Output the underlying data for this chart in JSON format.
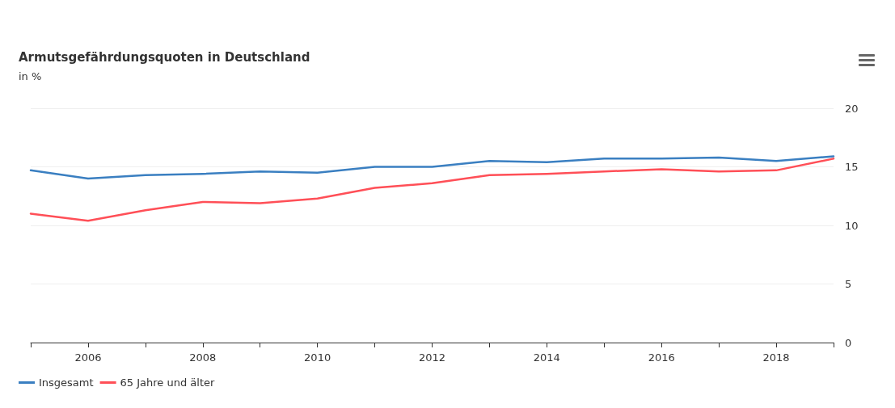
{
  "chart_data": {
    "type": "line",
    "title": "Armutsgefährdungsquoten in Deutschland",
    "subtitle": "in %",
    "x": [
      2005,
      2006,
      2007,
      2008,
      2009,
      2010,
      2011,
      2012,
      2013,
      2014,
      2015,
      2016,
      2017,
      2018,
      2019
    ],
    "series": [
      {
        "name": "Insgesamt",
        "color": "#3a7fc1",
        "values": [
          14.7,
          14.0,
          14.3,
          14.4,
          14.6,
          14.5,
          15.0,
          15.0,
          15.5,
          15.4,
          15.7,
          15.7,
          15.8,
          15.5,
          15.9
        ]
      },
      {
        "name": "65 Jahre und älter",
        "color": "#ff4f57",
        "values": [
          11.0,
          10.4,
          11.3,
          12.0,
          11.9,
          12.3,
          13.2,
          13.6,
          14.3,
          14.4,
          14.6,
          14.8,
          14.6,
          14.7,
          15.7
        ]
      }
    ],
    "xlim": [
      2005,
      2019
    ],
    "xticks": [
      {
        "value": 2005,
        "label": null
      },
      2006,
      {
        "value": 2007,
        "label": null
      },
      2008,
      {
        "value": 2009,
        "label": null
      },
      2010,
      {
        "value": 2011,
        "label": null
      },
      2012,
      {
        "value": 2013,
        "label": null
      },
      2014,
      {
        "value": 2015,
        "label": null
      },
      2016,
      {
        "value": 2017,
        "label": null
      },
      2018,
      {
        "value": 2019,
        "label": null
      }
    ],
    "ylim": [
      0,
      20
    ],
    "yticks": [
      0,
      5,
      10,
      15,
      20
    ],
    "grid": "y",
    "legend": "bottom left",
    "marker": "none",
    "line_style": "solid"
  }
}
